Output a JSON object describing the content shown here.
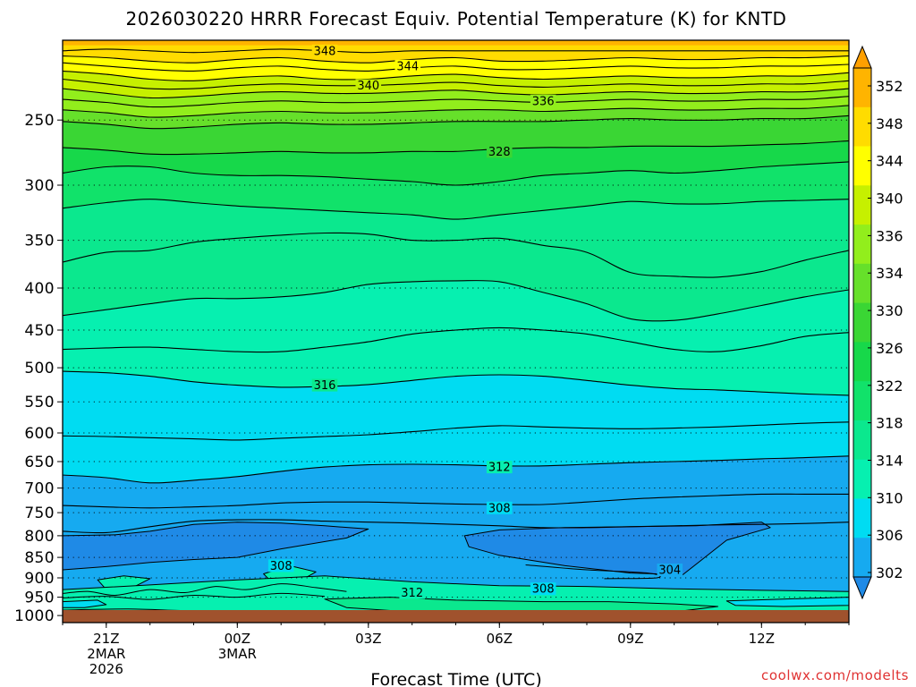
{
  "chart_data": {
    "type": "contour",
    "title": "2026030220 HRRR Forecast Equiv. Potential Temperature (K) for KNTD",
    "xlabel": "Forecast Time (UTC)",
    "ylabel": "Pressure (hPa)",
    "credit": "coolwx.com/modelts",
    "x_hours": [
      0,
      1,
      2,
      3,
      4,
      5,
      6,
      7,
      8,
      9,
      10,
      11,
      12,
      13,
      14,
      15,
      16,
      17,
      18
    ],
    "xlim": [
      0,
      18
    ],
    "ylim_hpa": [
      1020,
      200
    ],
    "x_ticks": [
      {
        "hour": 1,
        "lines": [
          "21Z",
          "2MAR",
          "2026"
        ]
      },
      {
        "hour": 4,
        "lines": [
          "00Z",
          "3MAR"
        ]
      },
      {
        "hour": 7,
        "lines": [
          "03Z"
        ]
      },
      {
        "hour": 10,
        "lines": [
          "06Z"
        ]
      },
      {
        "hour": 13,
        "lines": [
          "09Z"
        ]
      },
      {
        "hour": 16,
        "lines": [
          "12Z"
        ]
      }
    ],
    "y_ticks": [
      250,
      300,
      350,
      400,
      450,
      500,
      550,
      600,
      650,
      700,
      750,
      800,
      850,
      900,
      950,
      1000
    ],
    "colorbar": {
      "levels": [
        302,
        306,
        310,
        314,
        318,
        322,
        326,
        330,
        334,
        336,
        340,
        344,
        348,
        352
      ],
      "bounds": [
        300,
        304,
        308,
        312,
        316,
        320,
        324,
        328,
        332,
        335,
        338,
        342,
        346,
        350,
        354
      ],
      "colors": [
        "#1f8ae6",
        "#16aaf0",
        "#00dcf2",
        "#06f0b0",
        "#0be88e",
        "#11e26a",
        "#17d84a",
        "#3ad634",
        "#66e02a",
        "#92ee1c",
        "#c6f000",
        "#ffff00",
        "#ffdc00",
        "#ffb400",
        "#ffa000"
      ]
    },
    "surface_color": "#a0522d",
    "contour_levels": [
      304,
      308,
      312,
      316,
      320,
      324,
      328,
      332,
      334,
      336,
      338,
      340,
      342,
      344,
      346,
      348,
      350
    ],
    "contours": [
      {
        "level": 350,
        "p": [
          203,
          203,
          203,
          203,
          203,
          203,
          203,
          203,
          203,
          203,
          203,
          203,
          203,
          203,
          203,
          203,
          203,
          203,
          203
        ]
      },
      {
        "level": 348,
        "p": [
          206,
          205,
          206,
          207,
          206,
          205,
          206,
          207,
          206,
          206,
          206,
          206,
          206,
          206,
          206,
          206,
          206,
          206,
          206
        ]
      },
      {
        "level": 346,
        "p": [
          209,
          210,
          212,
          213,
          211,
          210,
          212,
          213,
          211,
          210,
          212,
          212,
          211,
          210,
          211,
          211,
          210,
          210,
          209
        ]
      },
      {
        "level": 344,
        "p": [
          213,
          215,
          217,
          218,
          216,
          215,
          217,
          218,
          216,
          215,
          217,
          217,
          216,
          215,
          216,
          216,
          215,
          215,
          214
        ]
      },
      {
        "level": 342,
        "p": [
          218,
          220,
          223,
          224,
          222,
          221,
          223,
          223,
          221,
          220,
          222,
          223,
          222,
          221,
          222,
          222,
          221,
          221,
          219
        ]
      },
      {
        "level": 340,
        "p": [
          223,
          226,
          229,
          229,
          227,
          226,
          227,
          227,
          226,
          225,
          227,
          228,
          227,
          226,
          227,
          227,
          226,
          226,
          224
        ]
      },
      {
        "level": 338,
        "p": [
          229,
          232,
          235,
          234,
          232,
          231,
          232,
          232,
          231,
          230,
          232,
          233,
          232,
          231,
          232,
          232,
          231,
          231,
          229
        ]
      },
      {
        "level": 336,
        "p": [
          236,
          238,
          241,
          240,
          238,
          237,
          238,
          238,
          237,
          236,
          237,
          238,
          237,
          236,
          237,
          237,
          236,
          236,
          234
        ]
      },
      {
        "level": 334,
        "p": [
          243,
          245,
          248,
          247,
          245,
          244,
          245,
          245,
          244,
          243,
          243,
          244,
          243,
          242,
          243,
          243,
          242,
          242,
          240
        ]
      },
      {
        "level": 332,
        "p": [
          251,
          253,
          256,
          255,
          253,
          252,
          253,
          253,
          252,
          251,
          251,
          251,
          250,
          249,
          250,
          250,
          249,
          249,
          247
        ]
      },
      {
        "level": 328,
        "p": [
          270,
          272,
          275,
          275,
          274,
          273,
          274,
          274,
          273,
          273,
          271,
          270,
          270,
          269,
          269,
          269,
          268,
          267,
          265
        ]
      },
      {
        "level": 324,
        "p": [
          290,
          285,
          285,
          290,
          292,
          292,
          293,
          295,
          297,
          300,
          297,
          292,
          290,
          288,
          290,
          288,
          285,
          283,
          281
        ]
      },
      {
        "level": 320,
        "p": [
          320,
          315,
          312,
          315,
          318,
          320,
          322,
          324,
          326,
          330,
          326,
          322,
          318,
          314,
          316,
          316,
          314,
          313,
          312
        ]
      },
      {
        "level": 318,
        "p": [
          372,
          362,
          360,
          352,
          348,
          345,
          343,
          344,
          350,
          350,
          348,
          355,
          362,
          383,
          387,
          388,
          382,
          370,
          360
        ]
      },
      {
        "level": 316,
        "p": [
          432,
          425,
          418,
          412,
          412,
          410,
          405,
          396,
          393,
          392,
          393,
          405,
          418,
          436,
          438,
          430,
          420,
          410,
          402
        ]
      },
      {
        "level": 314,
        "p": [
          475,
          473,
          472,
          475,
          478,
          478,
          472,
          465,
          455,
          450,
          447,
          450,
          455,
          465,
          475,
          478,
          470,
          458,
          453
        ]
      },
      {
        "level": 312,
        "p": [
          505,
          507,
          512,
          520,
          525,
          528,
          527,
          524,
          518,
          512,
          510,
          512,
          518,
          525,
          530,
          532,
          535,
          538,
          540
        ]
      },
      {
        "level": 310,
        "p": [
          605,
          606,
          608,
          610,
          612,
          609,
          606,
          603,
          598,
          592,
          588,
          590,
          592,
          593,
          592,
          590,
          587,
          584,
          582
        ]
      },
      {
        "level": 308,
        "p": [
          675,
          680,
          690,
          685,
          678,
          668,
          660,
          656,
          655,
          656,
          658,
          658,
          655,
          652,
          650,
          648,
          645,
          643,
          640
        ]
      },
      {
        "level": 306,
        "p": [
          735,
          738,
          740,
          738,
          735,
          730,
          728,
          728,
          730,
          732,
          733,
          733,
          728,
          722,
          718,
          715,
          712,
          712,
          712
        ]
      },
      {
        "level": 304,
        "p": [
          790,
          793,
          780,
          768,
          765,
          765,
          768,
          770,
          772,
          775,
          778,
          782,
          782,
          780,
          778,
          776,
          775,
          773,
          770
        ]
      }
    ],
    "contour_labels": [
      {
        "text": "348",
        "hour": 6.0,
        "p": 206
      },
      {
        "text": "344",
        "hour": 7.9,
        "p": 215
      },
      {
        "text": "340",
        "hour": 7.0,
        "p": 227
      },
      {
        "text": "336",
        "hour": 11.0,
        "p": 237
      },
      {
        "text": "328",
        "hour": 10.0,
        "p": 273
      },
      {
        "text": "316",
        "hour": 6.0,
        "p": 525
      },
      {
        "text": "312",
        "hour": 10.0,
        "p": 660
      },
      {
        "text": "308",
        "hour": 10.0,
        "p": 740
      },
      {
        "text": "308",
        "hour": 5.0,
        "p": 870
      },
      {
        "text": "312",
        "hour": 8.0,
        "p": 938
      },
      {
        "text": "308",
        "hour": 11.0,
        "p": 928
      },
      {
        "text": "304",
        "hour": 13.9,
        "p": 880
      },
      {
        "text": "312",
        "hour": 13.0,
        "p": 1012
      }
    ]
  }
}
